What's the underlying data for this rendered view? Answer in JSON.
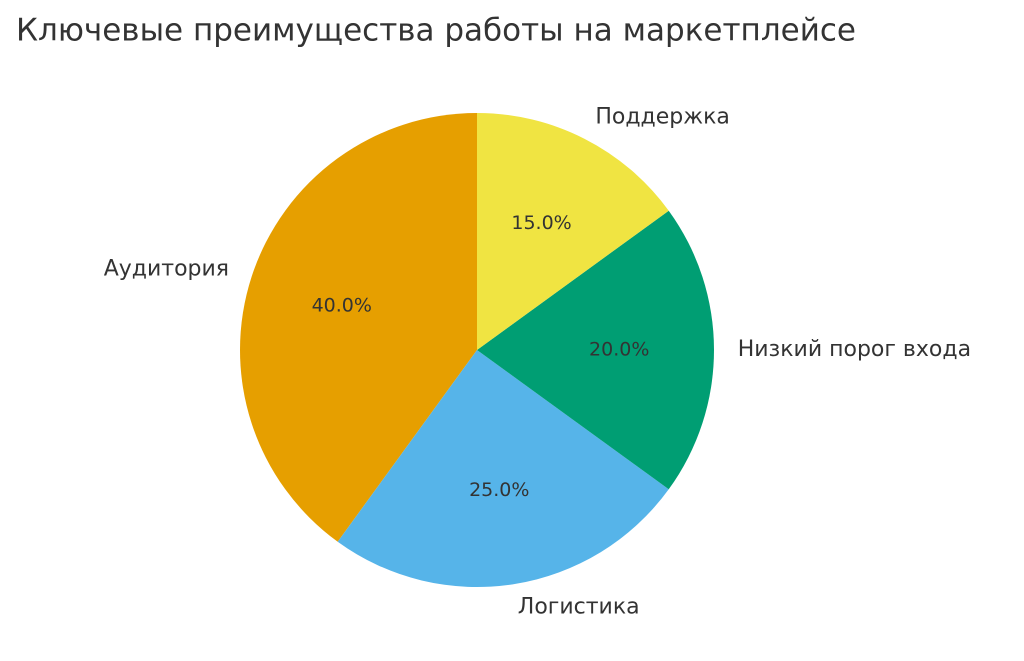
{
  "chart_data": {
    "type": "pie",
    "title": "Ключевые преимущества работы на маркетплейсе",
    "categories": [
      "Аудитория",
      "Логистика",
      "Низкий порог входа",
      "Поддержка"
    ],
    "values": [
      40,
      25,
      20,
      15
    ],
    "value_labels": [
      "40.0%",
      "25.0%",
      "20.0%",
      "15.0%"
    ],
    "colors": [
      "#E69F00",
      "#56B4E9",
      "#009E73",
      "#F0E442"
    ]
  }
}
